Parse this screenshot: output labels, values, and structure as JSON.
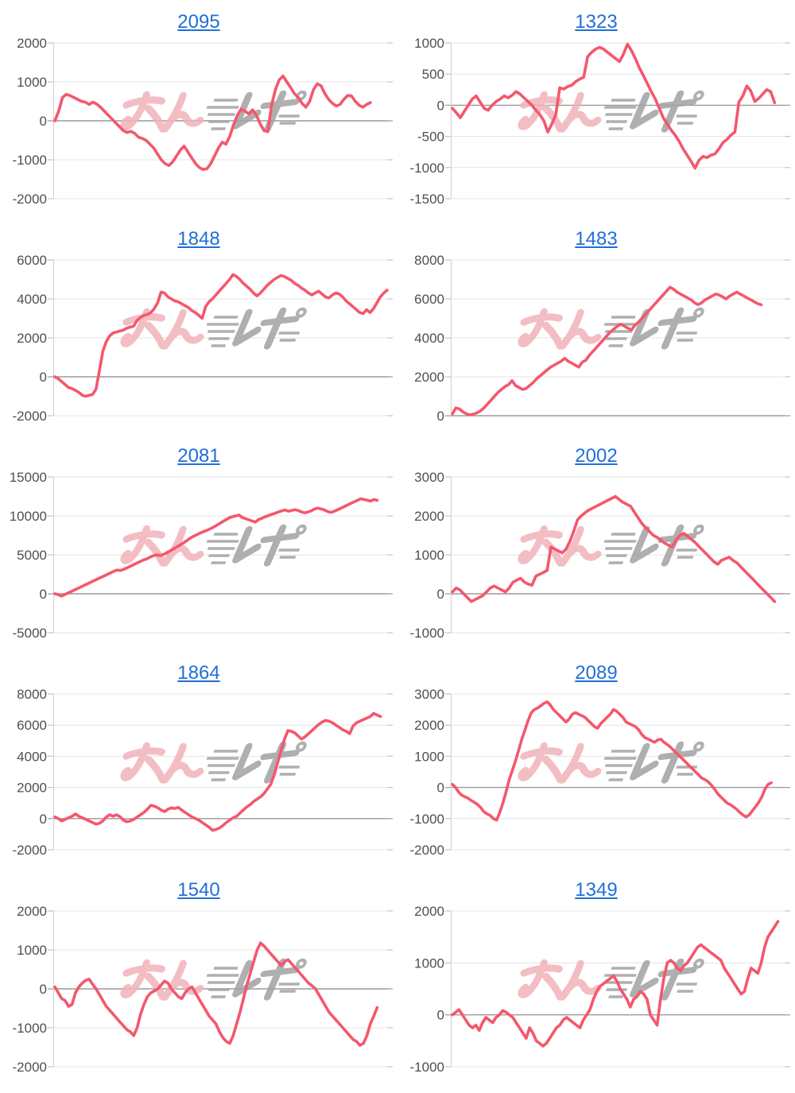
{
  "page": {
    "background": "#ffffff",
    "description": "grid of 10 slot payout line charts, 2 columns x 5 rows"
  },
  "colors": {
    "line": "#f4576d",
    "title_link": "#1f6fd9",
    "axis_label": "#4f4f4f",
    "gridline": "#e4e4e4",
    "zero_line": "#9a9a9a",
    "axis_line": "#d0d0d0",
    "tick": "#c4c4c4",
    "watermark_pink": "#f1b2ba",
    "watermark_gray": "#a2a2a2"
  },
  "watermark": {
    "icon": "minrepo-logo-watermark",
    "style": "pink kana glyphs + gray italic speed-line glyphs",
    "opacity": 0.85
  },
  "chart_data": [
    {
      "type": "line",
      "title": "2095",
      "xlabel": "",
      "ylabel": "",
      "y_ticks": [
        2000,
        1000,
        0,
        -1000,
        -2000
      ],
      "ylim": [
        -2000,
        2000
      ],
      "grid": true,
      "legend": "none",
      "x_end": 0.95,
      "values": [
        0,
        250,
        600,
        680,
        650,
        600,
        550,
        500,
        480,
        420,
        480,
        430,
        350,
        250,
        150,
        50,
        -50,
        -150,
        -250,
        -300,
        -270,
        -320,
        -420,
        -450,
        -500,
        -600,
        -700,
        -850,
        -1000,
        -1100,
        -1150,
        -1050,
        -900,
        -750,
        -650,
        -800,
        -950,
        -1100,
        -1200,
        -1250,
        -1230,
        -1100,
        -900,
        -700,
        -550,
        -600,
        -400,
        -100,
        150,
        300,
        250,
        180,
        280,
        150,
        -80,
        -250,
        -280,
        400,
        800,
        1050,
        1150,
        1000,
        850,
        700,
        600,
        450,
        350,
        500,
        800,
        950,
        900,
        700,
        550,
        450,
        380,
        420,
        550,
        650,
        640,
        500,
        400,
        350,
        420,
        470
      ]
    },
    {
      "type": "line",
      "title": "1323",
      "xlabel": "",
      "ylabel": "",
      "y_ticks": [
        1000,
        500,
        0,
        -500,
        -1000,
        -1500
      ],
      "ylim": [
        -1500,
        1000
      ],
      "grid": true,
      "legend": "none",
      "x_end": 0.97,
      "values": [
        -50,
        -120,
        -200,
        -100,
        0,
        100,
        150,
        50,
        -50,
        -80,
        0,
        60,
        100,
        150,
        120,
        160,
        220,
        180,
        120,
        60,
        0,
        -80,
        -150,
        -250,
        -430,
        -300,
        -150,
        280,
        260,
        300,
        320,
        380,
        420,
        450,
        780,
        850,
        900,
        930,
        900,
        850,
        800,
        750,
        700,
        820,
        980,
        880,
        750,
        600,
        480,
        350,
        220,
        100,
        -50,
        -200,
        -300,
        -400,
        -480,
        -580,
        -700,
        -800,
        -900,
        -1010,
        -880,
        -820,
        -840,
        -800,
        -780,
        -700,
        -600,
        -550,
        -480,
        -430,
        50,
        150,
        310,
        230,
        60,
        110,
        180,
        250,
        220,
        40
      ]
    },
    {
      "type": "line",
      "title": "1848",
      "xlabel": "",
      "ylabel": "",
      "y_ticks": [
        6000,
        4000,
        2000,
        0,
        -2000
      ],
      "ylim": [
        -2000,
        6000
      ],
      "grid": true,
      "legend": "none",
      "x_end": 1.0,
      "values": [
        0,
        -100,
        -250,
        -400,
        -550,
        -600,
        -700,
        -800,
        -950,
        -1000,
        -950,
        -900,
        -650,
        300,
        1300,
        1800,
        2100,
        2250,
        2300,
        2350,
        2400,
        2500,
        2550,
        2600,
        2900,
        3050,
        3150,
        3200,
        3300,
        3500,
        3800,
        4350,
        4300,
        4100,
        4000,
        3900,
        3850,
        3750,
        3650,
        3550,
        3400,
        3300,
        3150,
        3000,
        3600,
        3850,
        4000,
        4200,
        4400,
        4600,
        4800,
        5000,
        5250,
        5150,
        5000,
        4800,
        4650,
        4500,
        4300,
        4150,
        4300,
        4500,
        4700,
        4850,
        5000,
        5100,
        5200,
        5150,
        5050,
        4950,
        4800,
        4700,
        4550,
        4450,
        4300,
        4200,
        4300,
        4400,
        4250,
        4100,
        4050,
        4200,
        4300,
        4250,
        4100,
        3900,
        3750,
        3600,
        3450,
        3300,
        3250,
        3450,
        3300,
        3500,
        3800,
        4100,
        4300,
        4450
      ]
    },
    {
      "type": "line",
      "title": "1483",
      "xlabel": "",
      "ylabel": "",
      "y_ticks": [
        8000,
        6000,
        4000,
        2000,
        0
      ],
      "ylim": [
        0,
        8000
      ],
      "grid": true,
      "legend": "none",
      "x_end": 0.93,
      "values": [
        100,
        400,
        350,
        200,
        100,
        50,
        80,
        150,
        250,
        400,
        600,
        800,
        1000,
        1200,
        1350,
        1500,
        1600,
        1800,
        1550,
        1450,
        1350,
        1400,
        1550,
        1700,
        1900,
        2050,
        2200,
        2350,
        2500,
        2600,
        2700,
        2800,
        2950,
        2800,
        2700,
        2600,
        2500,
        2750,
        2850,
        3100,
        3300,
        3500,
        3700,
        3900,
        4100,
        4300,
        4450,
        4600,
        4700,
        4600,
        4500,
        4400,
        4650,
        4800,
        5000,
        5200,
        5400,
        5600,
        5800,
        6000,
        6200,
        6400,
        6600,
        6500,
        6350,
        6250,
        6150,
        6050,
        5950,
        5800,
        5700,
        5800,
        5950,
        6050,
        6150,
        6250,
        6200,
        6100,
        6000,
        6150,
        6250,
        6350,
        6250,
        6150,
        6050,
        5950,
        5850,
        5750,
        5700
      ]
    },
    {
      "type": "line",
      "title": "2081",
      "xlabel": "",
      "ylabel": "",
      "y_ticks": [
        15000,
        10000,
        5000,
        0,
        -5000
      ],
      "ylim": [
        -5000,
        15000
      ],
      "grid": true,
      "legend": "none",
      "x_end": 0.97,
      "values": [
        0,
        -100,
        -300,
        -100,
        100,
        300,
        500,
        700,
        900,
        1100,
        1300,
        1500,
        1700,
        1900,
        2100,
        2300,
        2500,
        2700,
        2900,
        3050,
        3000,
        3150,
        3350,
        3550,
        3750,
        3950,
        4150,
        4350,
        4500,
        4700,
        4900,
        5000,
        4900,
        5050,
        5250,
        5500,
        5750,
        6000,
        6250,
        6500,
        6800,
        7100,
        7350,
        7550,
        7750,
        7950,
        8100,
        8300,
        8500,
        8750,
        9000,
        9250,
        9500,
        9750,
        9900,
        10000,
        10100,
        9800,
        9650,
        9500,
        9350,
        9200,
        9550,
        9700,
        9900,
        10050,
        10200,
        10350,
        10500,
        10650,
        10750,
        10600,
        10700,
        10800,
        10700,
        10500,
        10400,
        10500,
        10650,
        10900,
        11000,
        10900,
        10750,
        10550,
        10450,
        10600,
        10800,
        11000,
        11200,
        11400,
        11600,
        11800,
        12000,
        12200,
        12100,
        12000,
        11900,
        12100,
        12000
      ]
    },
    {
      "type": "line",
      "title": "2002",
      "xlabel": "",
      "ylabel": "",
      "y_ticks": [
        3000,
        2000,
        1000,
        0,
        -1000
      ],
      "ylim": [
        -1000,
        3000
      ],
      "grid": true,
      "legend": "none",
      "x_end": 0.97,
      "values": [
        50,
        150,
        100,
        0,
        -100,
        -200,
        -150,
        -100,
        -50,
        50,
        150,
        200,
        150,
        100,
        50,
        150,
        300,
        350,
        400,
        300,
        250,
        220,
        450,
        500,
        550,
        600,
        1200,
        1150,
        1100,
        1050,
        1150,
        1350,
        1600,
        1900,
        2000,
        2080,
        2150,
        2200,
        2250,
        2300,
        2350,
        2400,
        2450,
        2500,
        2420,
        2350,
        2300,
        2250,
        2100,
        1950,
        1800,
        1700,
        1600,
        1500,
        1450,
        1380,
        1300,
        1250,
        1200,
        1380,
        1500,
        1550,
        1480,
        1400,
        1320,
        1220,
        1120,
        1020,
        920,
        820,
        760,
        860,
        900,
        940,
        860,
        800,
        700,
        600,
        500,
        400,
        300,
        200,
        100,
        0,
        -100,
        -200
      ]
    },
    {
      "type": "line",
      "title": "1864",
      "xlabel": "",
      "ylabel": "",
      "y_ticks": [
        8000,
        6000,
        4000,
        2000,
        0,
        -2000
      ],
      "ylim": [
        -2000,
        8000
      ],
      "grid": true,
      "legend": "none",
      "x_end": 0.98,
      "values": [
        100,
        0,
        -150,
        -50,
        50,
        150,
        300,
        150,
        50,
        -50,
        -150,
        -250,
        -350,
        -300,
        -150,
        100,
        250,
        150,
        250,
        120,
        -100,
        -200,
        -150,
        -50,
        100,
        250,
        400,
        600,
        850,
        800,
        700,
        550,
        450,
        600,
        700,
        650,
        720,
        550,
        400,
        250,
        100,
        0,
        -100,
        -250,
        -400,
        -550,
        -750,
        -700,
        -600,
        -450,
        -250,
        -100,
        50,
        150,
        350,
        550,
        750,
        900,
        1100,
        1250,
        1400,
        1600,
        1900,
        2200,
        2800,
        3600,
        4400,
        5100,
        5650,
        5600,
        5500,
        5300,
        5100,
        5250,
        5450,
        5650,
        5850,
        6050,
        6200,
        6300,
        6250,
        6150,
        6000,
        5850,
        5700,
        5600,
        5450,
        5950,
        6150,
        6250,
        6350,
        6450,
        6550,
        6750,
        6650,
        6550
      ]
    },
    {
      "type": "line",
      "title": "2089",
      "xlabel": "",
      "ylabel": "",
      "y_ticks": [
        3000,
        2000,
        1000,
        0,
        -1000,
        -2000
      ],
      "ylim": [
        -2000,
        3000
      ],
      "grid": true,
      "legend": "none",
      "x_end": 0.96,
      "values": [
        100,
        0,
        -150,
        -250,
        -300,
        -350,
        -420,
        -480,
        -550,
        -650,
        -780,
        -850,
        -900,
        -1000,
        -1050,
        -800,
        -500,
        -150,
        250,
        550,
        850,
        1200,
        1550,
        1850,
        2150,
        2400,
        2500,
        2550,
        2620,
        2700,
        2750,
        2650,
        2500,
        2400,
        2300,
        2200,
        2100,
        2200,
        2350,
        2400,
        2350,
        2300,
        2250,
        2150,
        2050,
        1950,
        1900,
        2050,
        2150,
        2250,
        2350,
        2500,
        2450,
        2350,
        2250,
        2100,
        2050,
        2000,
        1950,
        1850,
        1700,
        1600,
        1550,
        1500,
        1450,
        1520,
        1550,
        1450,
        1380,
        1300,
        1200,
        1100,
        1000,
        900,
        800,
        700,
        600,
        500,
        400,
        300,
        250,
        180,
        80,
        -50,
        -200,
        -300,
        -400,
        -500,
        -550,
        -620,
        -700,
        -800,
        -880,
        -950,
        -880,
        -750,
        -620,
        -480,
        -300,
        -50,
        100,
        150
      ]
    },
    {
      "type": "line",
      "title": "1540",
      "xlabel": "",
      "ylabel": "",
      "y_ticks": [
        2000,
        1000,
        0,
        -1000,
        -2000
      ],
      "ylim": [
        -2000,
        2000
      ],
      "grid": true,
      "legend": "none",
      "x_end": 0.97,
      "values": [
        50,
        -100,
        -250,
        -300,
        -450,
        -400,
        -100,
        50,
        150,
        220,
        250,
        120,
        0,
        -150,
        -300,
        -450,
        -550,
        -650,
        -750,
        -850,
        -950,
        -1050,
        -1100,
        -1200,
        -1000,
        -650,
        -400,
        -200,
        -100,
        -50,
        0,
        100,
        200,
        150,
        0,
        -100,
        -200,
        -250,
        -100,
        0,
        50,
        -100,
        -250,
        -400,
        -550,
        -700,
        -800,
        -900,
        -1100,
        -1250,
        -1350,
        -1400,
        -1200,
        -900,
        -600,
        -250,
        100,
        400,
        700,
        1000,
        1180,
        1100,
        1000,
        900,
        800,
        700,
        600,
        700,
        750,
        650,
        550,
        450,
        350,
        250,
        150,
        80,
        0,
        -150,
        -300,
        -450,
        -600,
        -700,
        -800,
        -900,
        -1000,
        -1100,
        -1200,
        -1300,
        -1350,
        -1450,
        -1400,
        -1200,
        -900,
        -700,
        -480
      ]
    },
    {
      "type": "line",
      "title": "1349",
      "xlabel": "",
      "ylabel": "",
      "y_ticks": [
        2000,
        1000,
        0,
        -1000
      ],
      "ylim": [
        -1000,
        2000
      ],
      "grid": true,
      "legend": "none",
      "x_end": 0.98,
      "values": [
        0,
        50,
        100,
        0,
        -100,
        -200,
        -250,
        -200,
        -300,
        -150,
        -50,
        -100,
        -150,
        -50,
        0,
        80,
        50,
        0,
        -50,
        -150,
        -250,
        -350,
        -450,
        -250,
        -350,
        -500,
        -550,
        -600,
        -550,
        -450,
        -350,
        -250,
        -200,
        -100,
        -50,
        -100,
        -150,
        -200,
        -250,
        -100,
        0,
        100,
        300,
        450,
        550,
        600,
        650,
        700,
        750,
        650,
        500,
        400,
        300,
        150,
        300,
        350,
        450,
        400,
        300,
        0,
        -100,
        -200,
        300,
        700,
        1000,
        1050,
        1000,
        900,
        850,
        950,
        1000,
        1100,
        1200,
        1300,
        1350,
        1300,
        1250,
        1200,
        1150,
        1100,
        1050,
        900,
        800,
        700,
        600,
        500,
        400,
        450,
        700,
        900,
        850,
        800,
        1000,
        1300,
        1500,
        1600,
        1700,
        1800
      ]
    }
  ]
}
